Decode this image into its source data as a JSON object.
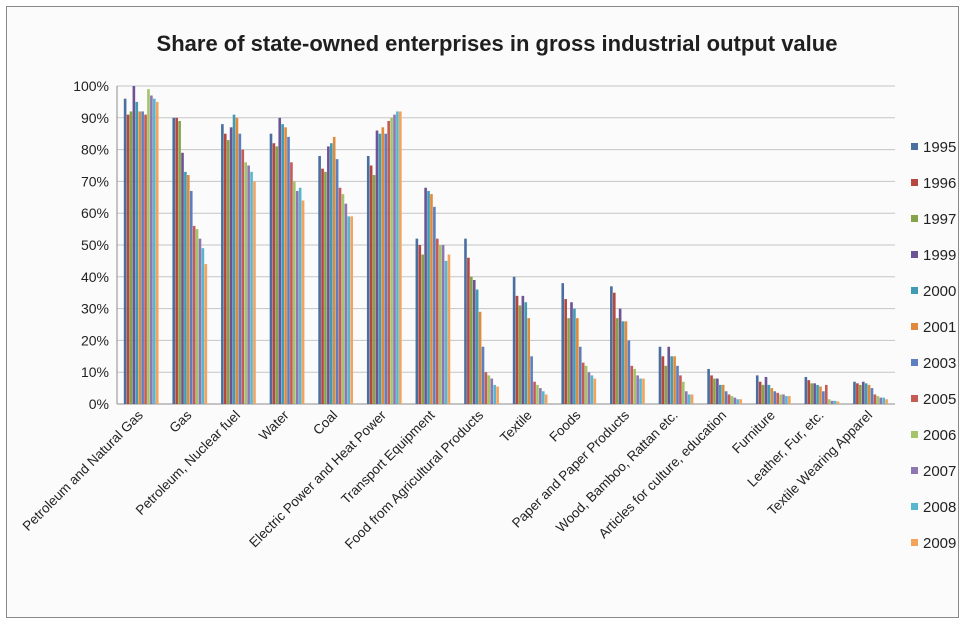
{
  "chart_data": {
    "type": "bar",
    "title": "Share of state-owned enterprises in gross industrial output value",
    "xlabel": "",
    "ylabel": "",
    "ylim": [
      0,
      100
    ],
    "y_ticks": [
      "0%",
      "10%",
      "20%",
      "30%",
      "40%",
      "50%",
      "60%",
      "70%",
      "80%",
      "90%",
      "100%"
    ],
    "grid": true,
    "legend_position": "right",
    "categories": [
      "Petroleum and Natural Gas",
      "Gas",
      "Petroleum, Nuclear fuel",
      "Water",
      "Coal",
      "Electric Power and Heat Power",
      "Transport Equipment",
      "Food from Agricultural Products",
      "Textile",
      "Foods",
      "Paper and Paper Products",
      "Wood, Bamboo, Rattan etc.",
      "Articles for culture, education",
      "Furniture",
      "Leather, Fur, etc.",
      "Textile Wearing Apparel"
    ],
    "series": [
      {
        "name": "1995",
        "color": "#4a6f9f",
        "values": [
          96,
          90,
          88,
          85,
          78,
          78,
          52,
          52,
          40,
          38,
          37,
          18,
          11,
          9,
          8.5,
          7
        ]
      },
      {
        "name": "1996",
        "color": "#b5473f",
        "values": [
          91,
          90,
          85,
          82,
          74,
          75,
          50,
          46,
          34,
          33,
          35,
          15,
          9,
          7,
          7.5,
          6.5
        ]
      },
      {
        "name": "1997",
        "color": "#86a34a",
        "values": [
          92,
          89,
          83,
          81,
          73,
          72,
          47,
          40,
          31,
          27,
          27,
          12,
          8,
          6,
          6.5,
          6
        ]
      },
      {
        "name": "1999",
        "color": "#6b5394",
        "values": [
          100,
          79,
          87,
          90,
          81,
          86,
          68,
          39,
          34,
          32,
          30,
          18,
          8,
          8.5,
          6.5,
          7
        ]
      },
      {
        "name": "2000",
        "color": "#3f9cb2",
        "values": [
          95,
          73,
          91,
          88,
          82,
          85,
          67,
          36,
          32,
          30,
          26,
          15,
          6,
          6,
          6,
          6.5
        ]
      },
      {
        "name": "2001",
        "color": "#e08a3c",
        "values": [
          92,
          72,
          90,
          87,
          84,
          87,
          66,
          29,
          27,
          27,
          26,
          15,
          6,
          5,
          5.5,
          6
        ]
      },
      {
        "name": "2003",
        "color": "#5b7fc0",
        "values": [
          92,
          67,
          85,
          84,
          77,
          85,
          62,
          18,
          15,
          18,
          20,
          12,
          4,
          4,
          4,
          5
        ]
      },
      {
        "name": "2005",
        "color": "#c65a55",
        "values": [
          91,
          56,
          80,
          76,
          68,
          89,
          52,
          10,
          7,
          13,
          12,
          9,
          3,
          3.5,
          6,
          3
        ]
      },
      {
        "name": "2006",
        "color": "#a3c46a",
        "values": [
          99,
          55,
          76,
          70,
          66,
          90,
          50,
          9,
          6,
          12,
          11,
          7,
          2.5,
          3,
          1.5,
          2.5
        ]
      },
      {
        "name": "2007",
        "color": "#8e76b2",
        "values": [
          97,
          52,
          75,
          67,
          63,
          91,
          50,
          8,
          5,
          10,
          9,
          4,
          2,
          3,
          1,
          2
        ]
      },
      {
        "name": "2008",
        "color": "#58b7cd",
        "values": [
          96,
          49,
          73,
          68,
          59,
          92,
          45,
          6,
          4,
          9,
          8,
          3,
          1.5,
          2.5,
          1,
          2
        ]
      },
      {
        "name": "2009",
        "color": "#f3a35c",
        "values": [
          95,
          44,
          70,
          64,
          59,
          92,
          47,
          5.5,
          3,
          8,
          8,
          3,
          1.5,
          2.5,
          0.8,
          1.5
        ]
      }
    ]
  }
}
